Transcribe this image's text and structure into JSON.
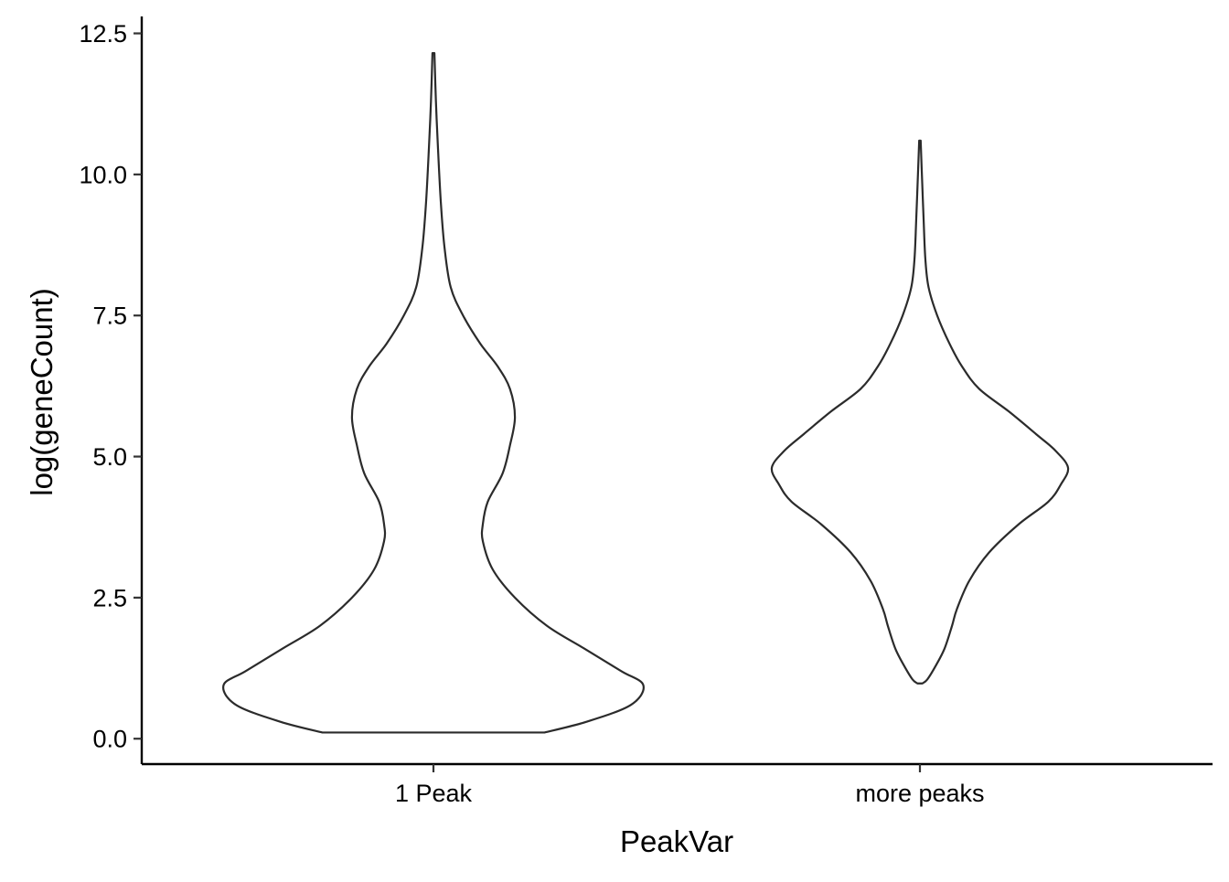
{
  "chart_data": {
    "type": "violin",
    "title": "",
    "xlabel": "PeakVar",
    "ylabel": "log(geneCount)",
    "categories": [
      "1 Peak",
      "more peaks"
    ],
    "ylim": [
      -0.45,
      12.8
    ],
    "yticks": [
      0.0,
      2.5,
      5.0,
      7.5,
      10.0,
      12.5
    ],
    "ytick_labels": [
      "0.0",
      "2.5",
      "5.0",
      "7.5",
      "10.0",
      "12.5"
    ],
    "grid": false,
    "legend": "none",
    "line_color": "#2b2b2b",
    "fill_color": "#ffffff",
    "series": [
      {
        "category": "1 Peak",
        "min": 0.11,
        "max": 12.15,
        "density_profile": [
          [
            0.11,
            0.45
          ],
          [
            0.3,
            0.62
          ],
          [
            0.6,
            0.8
          ],
          [
            0.95,
            0.85
          ],
          [
            1.2,
            0.76
          ],
          [
            1.6,
            0.61
          ],
          [
            2.0,
            0.46
          ],
          [
            2.5,
            0.33
          ],
          [
            3.0,
            0.24
          ],
          [
            3.5,
            0.2
          ],
          [
            3.8,
            0.2
          ],
          [
            4.2,
            0.22
          ],
          [
            4.7,
            0.28
          ],
          [
            5.2,
            0.31
          ],
          [
            5.7,
            0.33
          ],
          [
            6.2,
            0.31
          ],
          [
            6.6,
            0.26
          ],
          [
            7.0,
            0.19
          ],
          [
            7.5,
            0.12
          ],
          [
            8.0,
            0.07
          ],
          [
            8.7,
            0.045
          ],
          [
            9.5,
            0.03
          ],
          [
            10.5,
            0.018
          ],
          [
            11.3,
            0.01
          ],
          [
            12.15,
            0.004
          ]
        ]
      },
      {
        "category": "more peaks",
        "min": 0.98,
        "max": 10.6,
        "density_profile": [
          [
            0.98,
            0.01
          ],
          [
            1.05,
            0.03
          ],
          [
            1.3,
            0.065
          ],
          [
            1.6,
            0.1
          ],
          [
            2.0,
            0.13
          ],
          [
            2.3,
            0.15
          ],
          [
            2.8,
            0.2
          ],
          [
            3.3,
            0.28
          ],
          [
            3.8,
            0.4
          ],
          [
            4.2,
            0.52
          ],
          [
            4.5,
            0.57
          ],
          [
            4.8,
            0.6
          ],
          [
            5.1,
            0.55
          ],
          [
            5.4,
            0.47
          ],
          [
            5.8,
            0.36
          ],
          [
            6.2,
            0.24
          ],
          [
            6.6,
            0.17
          ],
          [
            7.0,
            0.12
          ],
          [
            7.5,
            0.07
          ],
          [
            8.0,
            0.035
          ],
          [
            8.5,
            0.022
          ],
          [
            9.2,
            0.015
          ],
          [
            10.0,
            0.008
          ],
          [
            10.6,
            0.003
          ]
        ]
      }
    ]
  }
}
